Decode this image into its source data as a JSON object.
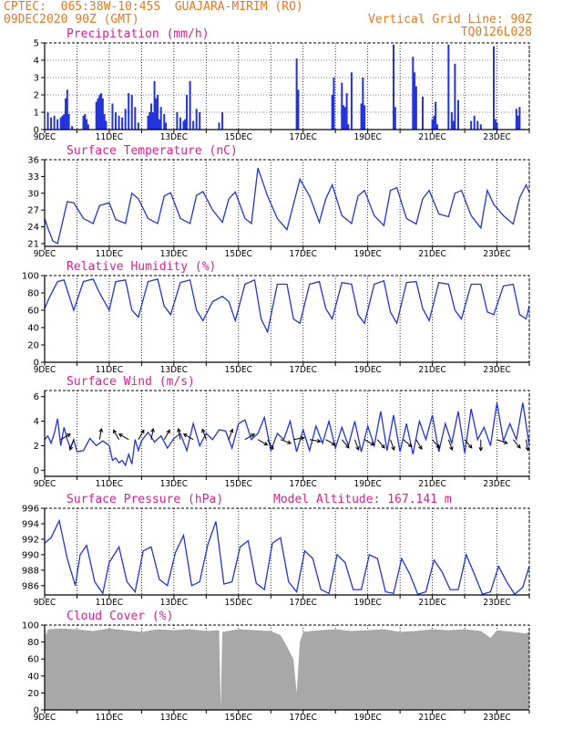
{
  "header": {
    "line1_left": "CPTEC:  065:38W-10:45S  GUAJARA-MIRIM (RO)",
    "line2_left": "09DEC2020 90Z (GMT)",
    "line2_right": "Vertical Grid Line: 90Z",
    "line3_right": "TQ0126L028"
  },
  "colors": {
    "header": "#e87820",
    "title": "#e0208c",
    "series": "#2233dd",
    "cloud": "#a8a8a8",
    "arrow": "#000000"
  },
  "chart_data": [
    {
      "id": "precip",
      "type": "bar",
      "title": "Precipitation (mm/h)",
      "xlim": [
        9,
        24
      ],
      "ylim": [
        0,
        5
      ],
      "yticks": [
        0,
        1,
        2,
        3,
        4,
        5
      ],
      "xticks": [
        "9DEC",
        "11DEC",
        "13DEC",
        "15DEC",
        "17DEC",
        "19DEC",
        "21DEC",
        "23DEC"
      ],
      "x": [
        9.1,
        9.2,
        9.3,
        9.4,
        9.5,
        9.55,
        9.6,
        9.65,
        9.7,
        9.75,
        9.85,
        10.2,
        10.25,
        10.3,
        10.35,
        10.6,
        10.65,
        10.7,
        10.75,
        10.8,
        10.85,
        10.9,
        11.1,
        11.2,
        11.3,
        11.4,
        11.5,
        11.6,
        11.7,
        11.8,
        11.9,
        12.2,
        12.25,
        12.3,
        12.35,
        12.4,
        12.45,
        12.5,
        12.55,
        12.6,
        12.7,
        12.75,
        13.1,
        13.2,
        13.3,
        13.35,
        13.4,
        13.5,
        13.6,
        13.7,
        13.8,
        14.4,
        14.5,
        16.8,
        16.85,
        17.9,
        17.95,
        18.2,
        18.25,
        18.3,
        18.35,
        18.4,
        18.5,
        18.8,
        18.85,
        18.9,
        19.8,
        19.85,
        20.4,
        20.45,
        20.5,
        20.7,
        21.0,
        21.05,
        21.1,
        21.15,
        21.5,
        21.6,
        21.65,
        21.7,
        21.8,
        22.2,
        22.3,
        22.4,
        22.5,
        22.9,
        22.95,
        23.0,
        23.6,
        23.65,
        23.7
      ],
      "values": [
        1.0,
        0.7,
        0.8,
        0.6,
        0.7,
        0.8,
        0.9,
        1.8,
        2.3,
        0.9,
        0.2,
        0.8,
        0.9,
        0.6,
        0.3,
        1.6,
        1.8,
        2.0,
        2.1,
        1.8,
        0.9,
        0.5,
        1.5,
        1.0,
        0.8,
        0.7,
        1.2,
        2.1,
        2.0,
        1.3,
        0.4,
        0.8,
        1.0,
        1.5,
        1.0,
        2.8,
        1.8,
        2.0,
        0.6,
        1.3,
        0.9,
        0.4,
        1.0,
        0.7,
        0.5,
        0.6,
        2.0,
        2.8,
        0.5,
        1.2,
        1.0,
        0.4,
        1.0,
        4.1,
        2.3,
        2.0,
        3.0,
        2.7,
        1.4,
        1.3,
        2.1,
        0.3,
        3.3,
        1.5,
        3.0,
        1.4,
        4.9,
        1.3,
        4.2,
        3.3,
        2.5,
        1.9,
        0.6,
        0.8,
        1.6,
        0.3,
        4.9,
        1.0,
        0.5,
        3.8,
        1.7,
        0.5,
        0.8,
        0.5,
        0.3,
        4.8,
        0.6,
        0.4,
        1.2,
        0.8,
        1.3
      ]
    },
    {
      "id": "temp",
      "type": "line",
      "title": "Surface Temperature (nC)",
      "xlim": [
        9,
        24
      ],
      "ylim": [
        20.5,
        36
      ],
      "yticks": [
        21,
        24,
        27,
        30,
        33,
        36
      ],
      "xticks": [
        "9DEC",
        "11DEC",
        "13DEC",
        "15DEC",
        "17DEC",
        "19DEC",
        "21DEC",
        "23DEC"
      ],
      "x": [
        9.0,
        9.1,
        9.25,
        9.4,
        9.7,
        9.9,
        10.2,
        10.5,
        10.7,
        11.0,
        11.2,
        11.5,
        11.7,
        11.9,
        12.2,
        12.5,
        12.7,
        12.9,
        13.2,
        13.5,
        13.7,
        13.9,
        14.2,
        14.5,
        14.7,
        14.9,
        15.2,
        15.4,
        15.6,
        15.9,
        16.2,
        16.5,
        16.7,
        16.9,
        17.2,
        17.5,
        17.7,
        17.9,
        18.2,
        18.5,
        18.7,
        18.9,
        19.2,
        19.5,
        19.7,
        19.9,
        20.2,
        20.5,
        20.7,
        20.9,
        21.2,
        21.5,
        21.7,
        21.9,
        22.2,
        22.5,
        22.7,
        22.9,
        23.2,
        23.5,
        23.7,
        23.9,
        24.0
      ],
      "values": [
        25.5,
        23.8,
        21.5,
        21.0,
        28.5,
        28.3,
        25.5,
        24.6,
        27.8,
        28.3,
        25.3,
        24.6,
        30.0,
        29.0,
        25.5,
        24.6,
        29.5,
        30.1,
        25.5,
        24.6,
        29.6,
        30.3,
        27.0,
        24.8,
        29.0,
        30.2,
        25.5,
        24.6,
        34.5,
        29.5,
        25.5,
        23.5,
        28.0,
        32.5,
        29.5,
        24.8,
        29.0,
        31.5,
        26.0,
        24.6,
        29.5,
        30.5,
        26.0,
        24.2,
        30.5,
        31.0,
        25.5,
        24.5,
        29.0,
        30.5,
        26.3,
        25.8,
        30.0,
        30.5,
        26.0,
        23.8,
        30.5,
        28.0,
        26.0,
        24.5,
        29.2,
        31.5,
        30.2
      ]
    },
    {
      "id": "rh",
      "type": "line",
      "title": "Relative Humidity (%)",
      "xlim": [
        9,
        24
      ],
      "ylim": [
        0,
        100
      ],
      "yticks": [
        0,
        20,
        40,
        60,
        80,
        100
      ],
      "xticks": [
        "9DEC",
        "11DEC",
        "13DEC",
        "15DEC",
        "17DEC",
        "19DEC",
        "21DEC",
        "23DEC"
      ],
      "x": [
        9.0,
        9.15,
        9.4,
        9.6,
        9.9,
        10.2,
        10.5,
        10.7,
        11.0,
        11.2,
        11.5,
        11.7,
        11.9,
        12.2,
        12.5,
        12.7,
        12.9,
        13.2,
        13.5,
        13.7,
        13.9,
        14.2,
        14.5,
        14.7,
        14.9,
        15.2,
        15.5,
        15.7,
        15.9,
        16.2,
        16.5,
        16.7,
        16.9,
        17.2,
        17.5,
        17.7,
        17.9,
        18.2,
        18.5,
        18.7,
        18.9,
        19.2,
        19.5,
        19.7,
        19.9,
        20.2,
        20.5,
        20.7,
        20.9,
        21.2,
        21.5,
        21.7,
        21.9,
        22.2,
        22.5,
        22.7,
        22.9,
        23.2,
        23.5,
        23.7,
        23.9,
        24.0
      ],
      "values": [
        62,
        75,
        93,
        95,
        60,
        93,
        96,
        80,
        60,
        93,
        95,
        60,
        52,
        93,
        96,
        65,
        55,
        92,
        95,
        60,
        48,
        70,
        76,
        70,
        48,
        90,
        95,
        50,
        35,
        90,
        90,
        50,
        45,
        90,
        93,
        62,
        50,
        92,
        90,
        55,
        45,
        90,
        94,
        58,
        45,
        92,
        93,
        62,
        48,
        92,
        90,
        60,
        50,
        90,
        90,
        58,
        55,
        88,
        90,
        55,
        50,
        65
      ]
    },
    {
      "id": "wind",
      "type": "line",
      "title": "Surface Wind (m/s)",
      "xlim": [
        9,
        24
      ],
      "ylim": [
        -0.5,
        6.5
      ],
      "yticks": [
        0,
        2,
        4,
        6
      ],
      "xticks": [
        "9DEC",
        "11DEC",
        "13DEC",
        "15DEC",
        "17DEC",
        "19DEC",
        "21DEC",
        "23DEC"
      ],
      "x": [
        9.0,
        9.1,
        9.2,
        9.3,
        9.4,
        9.5,
        9.6,
        9.7,
        9.8,
        9.9,
        10.0,
        10.2,
        10.4,
        10.6,
        10.8,
        11.0,
        11.1,
        11.2,
        11.3,
        11.4,
        11.5,
        11.6,
        11.7,
        11.8,
        11.9,
        12.0,
        12.2,
        12.4,
        12.6,
        12.8,
        13.0,
        13.2,
        13.4,
        13.6,
        13.8,
        14.0,
        14.2,
        14.4,
        14.6,
        14.8,
        15.0,
        15.2,
        15.4,
        15.6,
        15.8,
        16.0,
        16.2,
        16.4,
        16.6,
        16.8,
        17.0,
        17.2,
        17.4,
        17.6,
        17.8,
        18.0,
        18.2,
        18.4,
        18.6,
        18.8,
        19.0,
        19.2,
        19.4,
        19.6,
        19.8,
        20.0,
        20.2,
        20.4,
        20.6,
        20.8,
        21.0,
        21.2,
        21.4,
        21.6,
        21.8,
        22.0,
        22.2,
        22.4,
        22.6,
        22.8,
        23.0,
        23.2,
        23.4,
        23.6,
        23.8,
        24.0
      ],
      "values": [
        2.5,
        2.8,
        2.2,
        3.0,
        4.2,
        2.0,
        3.5,
        2.5,
        1.8,
        2.5,
        1.5,
        1.6,
        2.6,
        2.0,
        2.4,
        2.0,
        0.8,
        1.0,
        0.6,
        0.8,
        0.4,
        1.3,
        0.5,
        2.5,
        1.6,
        2.4,
        3.1,
        2.3,
        2.8,
        1.8,
        2.6,
        3.0,
        1.6,
        3.8,
        2.0,
        3.0,
        2.5,
        3.3,
        3.2,
        1.8,
        3.8,
        4.1,
        2.5,
        3.0,
        4.3,
        1.6,
        3.0,
        2.5,
        4.0,
        1.5,
        3.3,
        1.6,
        3.6,
        2.2,
        4.0,
        1.8,
        3.5,
        2.0,
        4.0,
        1.5,
        3.6,
        2.0,
        4.8,
        1.6,
        4.5,
        1.5,
        3.8,
        1.3,
        4.0,
        2.5,
        4.5,
        1.5,
        3.8,
        2.2,
        4.8,
        1.4,
        5.0,
        2.5,
        3.5,
        2.0,
        5.5,
        2.4,
        3.8,
        2.5,
        5.5,
        2.0
      ],
      "arrows": [
        {
          "x": 9.5,
          "dir": 60
        },
        {
          "x": 9.9,
          "dir": 200
        },
        {
          "x": 10.7,
          "dir": 10
        },
        {
          "x": 11.3,
          "dir": 330
        },
        {
          "x": 11.6,
          "dir": 300
        },
        {
          "x": 11.9,
          "dir": 30
        },
        {
          "x": 12.3,
          "dir": 10
        },
        {
          "x": 12.7,
          "dir": 30
        },
        {
          "x": 13.2,
          "dir": 350
        },
        {
          "x": 13.6,
          "dir": 300
        },
        {
          "x": 14.0,
          "dir": 340
        },
        {
          "x": 14.7,
          "dir": 20
        },
        {
          "x": 15.2,
          "dir": 60
        },
        {
          "x": 15.6,
          "dir": 120
        },
        {
          "x": 15.9,
          "dir": 150
        },
        {
          "x": 16.3,
          "dir": 110
        },
        {
          "x": 16.7,
          "dir": 80
        },
        {
          "x": 17.2,
          "dir": 100
        },
        {
          "x": 17.7,
          "dir": 120
        },
        {
          "x": 18.2,
          "dir": 140
        },
        {
          "x": 18.6,
          "dir": 160
        },
        {
          "x": 18.9,
          "dir": 120
        },
        {
          "x": 19.3,
          "dir": 140
        },
        {
          "x": 19.7,
          "dir": 160
        },
        {
          "x": 20.1,
          "dir": 130
        },
        {
          "x": 20.5,
          "dir": 150
        },
        {
          "x": 21.0,
          "dir": 140
        },
        {
          "x": 21.5,
          "dir": 160
        },
        {
          "x": 22.0,
          "dir": 140
        },
        {
          "x": 22.5,
          "dir": 180
        },
        {
          "x": 23.0,
          "dir": 110
        },
        {
          "x": 23.5,
          "dir": 140
        },
        {
          "x": 23.9,
          "dir": 170
        }
      ]
    },
    {
      "id": "press",
      "type": "line",
      "title": "Surface Pressure (hPa)",
      "subtitle": "Model Altitude: 167.141 m",
      "xlim": [
        9,
        24
      ],
      "ylim": [
        984.8,
        996
      ],
      "yticks": [
        986,
        988,
        990,
        992,
        994,
        996
      ],
      "xticks": [
        "9DEC",
        "11DEC",
        "13DEC",
        "15DEC",
        "17DEC",
        "19DEC",
        "21DEC",
        "23DEC"
      ],
      "x": [
        9.0,
        9.2,
        9.45,
        9.7,
        9.95,
        10.1,
        10.3,
        10.55,
        10.8,
        11.0,
        11.3,
        11.55,
        11.8,
        12.05,
        12.3,
        12.55,
        12.8,
        13.05,
        13.3,
        13.55,
        13.8,
        14.05,
        14.3,
        14.55,
        14.8,
        15.05,
        15.3,
        15.55,
        15.8,
        16.05,
        16.3,
        16.55,
        16.8,
        17.05,
        17.3,
        17.55,
        17.8,
        18.05,
        18.3,
        18.55,
        18.8,
        19.05,
        19.3,
        19.55,
        19.8,
        20.05,
        20.3,
        20.55,
        20.8,
        21.05,
        21.3,
        21.55,
        21.8,
        22.05,
        22.3,
        22.55,
        22.8,
        23.05,
        23.3,
        23.55,
        23.8,
        24.0
      ],
      "values": [
        991.5,
        992.2,
        994.4,
        989.5,
        986.0,
        990.0,
        991.2,
        986.5,
        985.0,
        989.0,
        991.0,
        986.5,
        985.2,
        990.5,
        991.0,
        986.8,
        986.0,
        990.3,
        992.5,
        986.0,
        986.5,
        991.3,
        994.3,
        986.2,
        986.5,
        991.0,
        991.8,
        986.3,
        985.5,
        991.5,
        992.2,
        986.5,
        985.2,
        990.5,
        989.5,
        985.5,
        985.0,
        990.0,
        989.0,
        985.5,
        985.5,
        990.0,
        989.5,
        985.2,
        985.0,
        989.5,
        987.5,
        984.9,
        985.2,
        989.3,
        987.8,
        985.5,
        985.5,
        990.0,
        987.5,
        984.9,
        985.2,
        988.5,
        986.5,
        984.9,
        985.8,
        988.5
      ]
    },
    {
      "id": "cloud",
      "type": "area",
      "title": "Cloud Cover (%)",
      "xlim": [
        9,
        24
      ],
      "ylim": [
        0,
        100
      ],
      "yticks": [
        0,
        20,
        40,
        60,
        80,
        100
      ],
      "xticks": [
        "9DEC",
        "11DEC",
        "13DEC",
        "15DEC",
        "17DEC",
        "19DEC",
        "21DEC",
        "23DEC"
      ],
      "x": [
        9.0,
        9.05,
        9.1,
        9.5,
        10.0,
        10.5,
        11.0,
        11.5,
        12.0,
        12.5,
        13.0,
        13.5,
        14.0,
        14.4,
        14.45,
        14.5,
        15.0,
        15.5,
        16.0,
        16.3,
        16.5,
        16.7,
        16.8,
        16.9,
        17.0,
        17.5,
        18.0,
        18.5,
        19.0,
        19.5,
        20.0,
        20.5,
        21.0,
        21.5,
        22.0,
        22.5,
        22.8,
        23.0,
        23.5,
        23.9,
        24.0
      ],
      "values": [
        100,
        88,
        95,
        96,
        95,
        93,
        96,
        94,
        92,
        95,
        94,
        95,
        93,
        94,
        2,
        92,
        95,
        94,
        93,
        88,
        75,
        60,
        20,
        80,
        92,
        94,
        95,
        93,
        94,
        95,
        92,
        93,
        95,
        94,
        95,
        93,
        85,
        94,
        92,
        90,
        93
      ]
    }
  ]
}
